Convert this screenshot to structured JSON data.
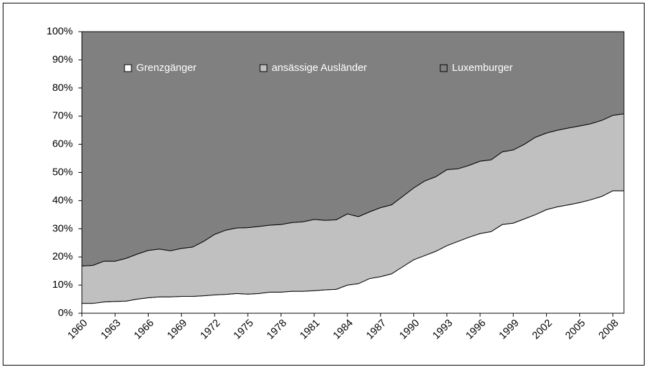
{
  "chart_data": {
    "type": "stacked_area",
    "x": [
      1960,
      1961,
      1962,
      1963,
      1964,
      1965,
      1966,
      1967,
      1968,
      1969,
      1970,
      1971,
      1972,
      1973,
      1974,
      1975,
      1976,
      1977,
      1978,
      1979,
      1980,
      1981,
      1982,
      1983,
      1984,
      1985,
      1986,
      1987,
      1988,
      1989,
      1990,
      1991,
      1992,
      1993,
      1994,
      1995,
      1996,
      1997,
      1998,
      1999,
      2000,
      2001,
      2002,
      2003,
      2004,
      2005,
      2006,
      2007,
      2008,
      2009
    ],
    "series": [
      {
        "name": "Grenzgänger",
        "color": "#ffffff",
        "values": [
          3.5,
          3.5,
          4,
          4.2,
          4.3,
          5,
          5.5,
          5.8,
          5.8,
          6,
          6,
          6.2,
          6.5,
          6.7,
          7,
          6.8,
          7,
          7.5,
          7.5,
          7.8,
          7.8,
          8,
          8.3,
          8.5,
          10,
          10.5,
          12.3,
          13,
          14,
          16.5,
          19,
          20.5,
          22,
          24,
          25.5,
          27,
          28.3,
          29,
          31.5,
          32,
          33.5,
          35,
          36.8,
          37.8,
          38.5,
          39.3,
          40.3,
          41.5,
          43.5,
          43.5
        ]
      },
      {
        "name": "ansässige Ausländer",
        "color": "#c0c0c0",
        "values": [
          13.3,
          13.5,
          14.5,
          14.3,
          15.2,
          16,
          16.8,
          17,
          16.4,
          17,
          17.5,
          19.3,
          21.5,
          22.8,
          23.3,
          23.6,
          23.8,
          23.8,
          24,
          24.4,
          24.7,
          25.3,
          24.7,
          24.7,
          25.3,
          23.8,
          23.7,
          24.5,
          24.5,
          25,
          25.5,
          26.5,
          26.5,
          27,
          25.8,
          25.5,
          25.7,
          25.5,
          25.8,
          26,
          26.5,
          27.5,
          27.2,
          27.2,
          27.3,
          27.2,
          27,
          27,
          26.8,
          27.3
        ]
      },
      {
        "name": "Luxemburger",
        "color": "#808080",
        "values": [
          83.2,
          83,
          81.5,
          81.5,
          80.5,
          79,
          77.7,
          77.2,
          77.8,
          77,
          76.5,
          74.5,
          72,
          70.5,
          69.7,
          69.6,
          69.2,
          68.7,
          68.5,
          67.8,
          67.5,
          66.7,
          67,
          66.8,
          64.7,
          65.7,
          64,
          62.5,
          61.5,
          58.5,
          55.5,
          53,
          51.5,
          49,
          48.7,
          47.5,
          46,
          45.5,
          42.7,
          42,
          40,
          37.5,
          36,
          35,
          34.2,
          33.5,
          32.7,
          31.5,
          29.7,
          29.2
        ]
      }
    ],
    "xlim": [
      1960,
      2009
    ],
    "xticks": [
      1960,
      1963,
      1966,
      1969,
      1972,
      1975,
      1978,
      1981,
      1984,
      1987,
      1990,
      1993,
      1996,
      1999,
      2002,
      2005,
      2008
    ],
    "ylim": [
      0,
      100
    ],
    "yticks": [
      {
        "value": 0,
        "label": "0%"
      },
      {
        "value": 10,
        "label": "10%"
      },
      {
        "value": 20,
        "label": "20%"
      },
      {
        "value": 30,
        "label": "30%"
      },
      {
        "value": 40,
        "label": "40%"
      },
      {
        "value": 50,
        "label": "50%"
      },
      {
        "value": 60,
        "label": "60%"
      },
      {
        "value": 70,
        "label": "70%"
      },
      {
        "value": 80,
        "label": "80%"
      },
      {
        "value": 90,
        "label": "90%"
      },
      {
        "value": 100,
        "label": "100%"
      }
    ]
  }
}
